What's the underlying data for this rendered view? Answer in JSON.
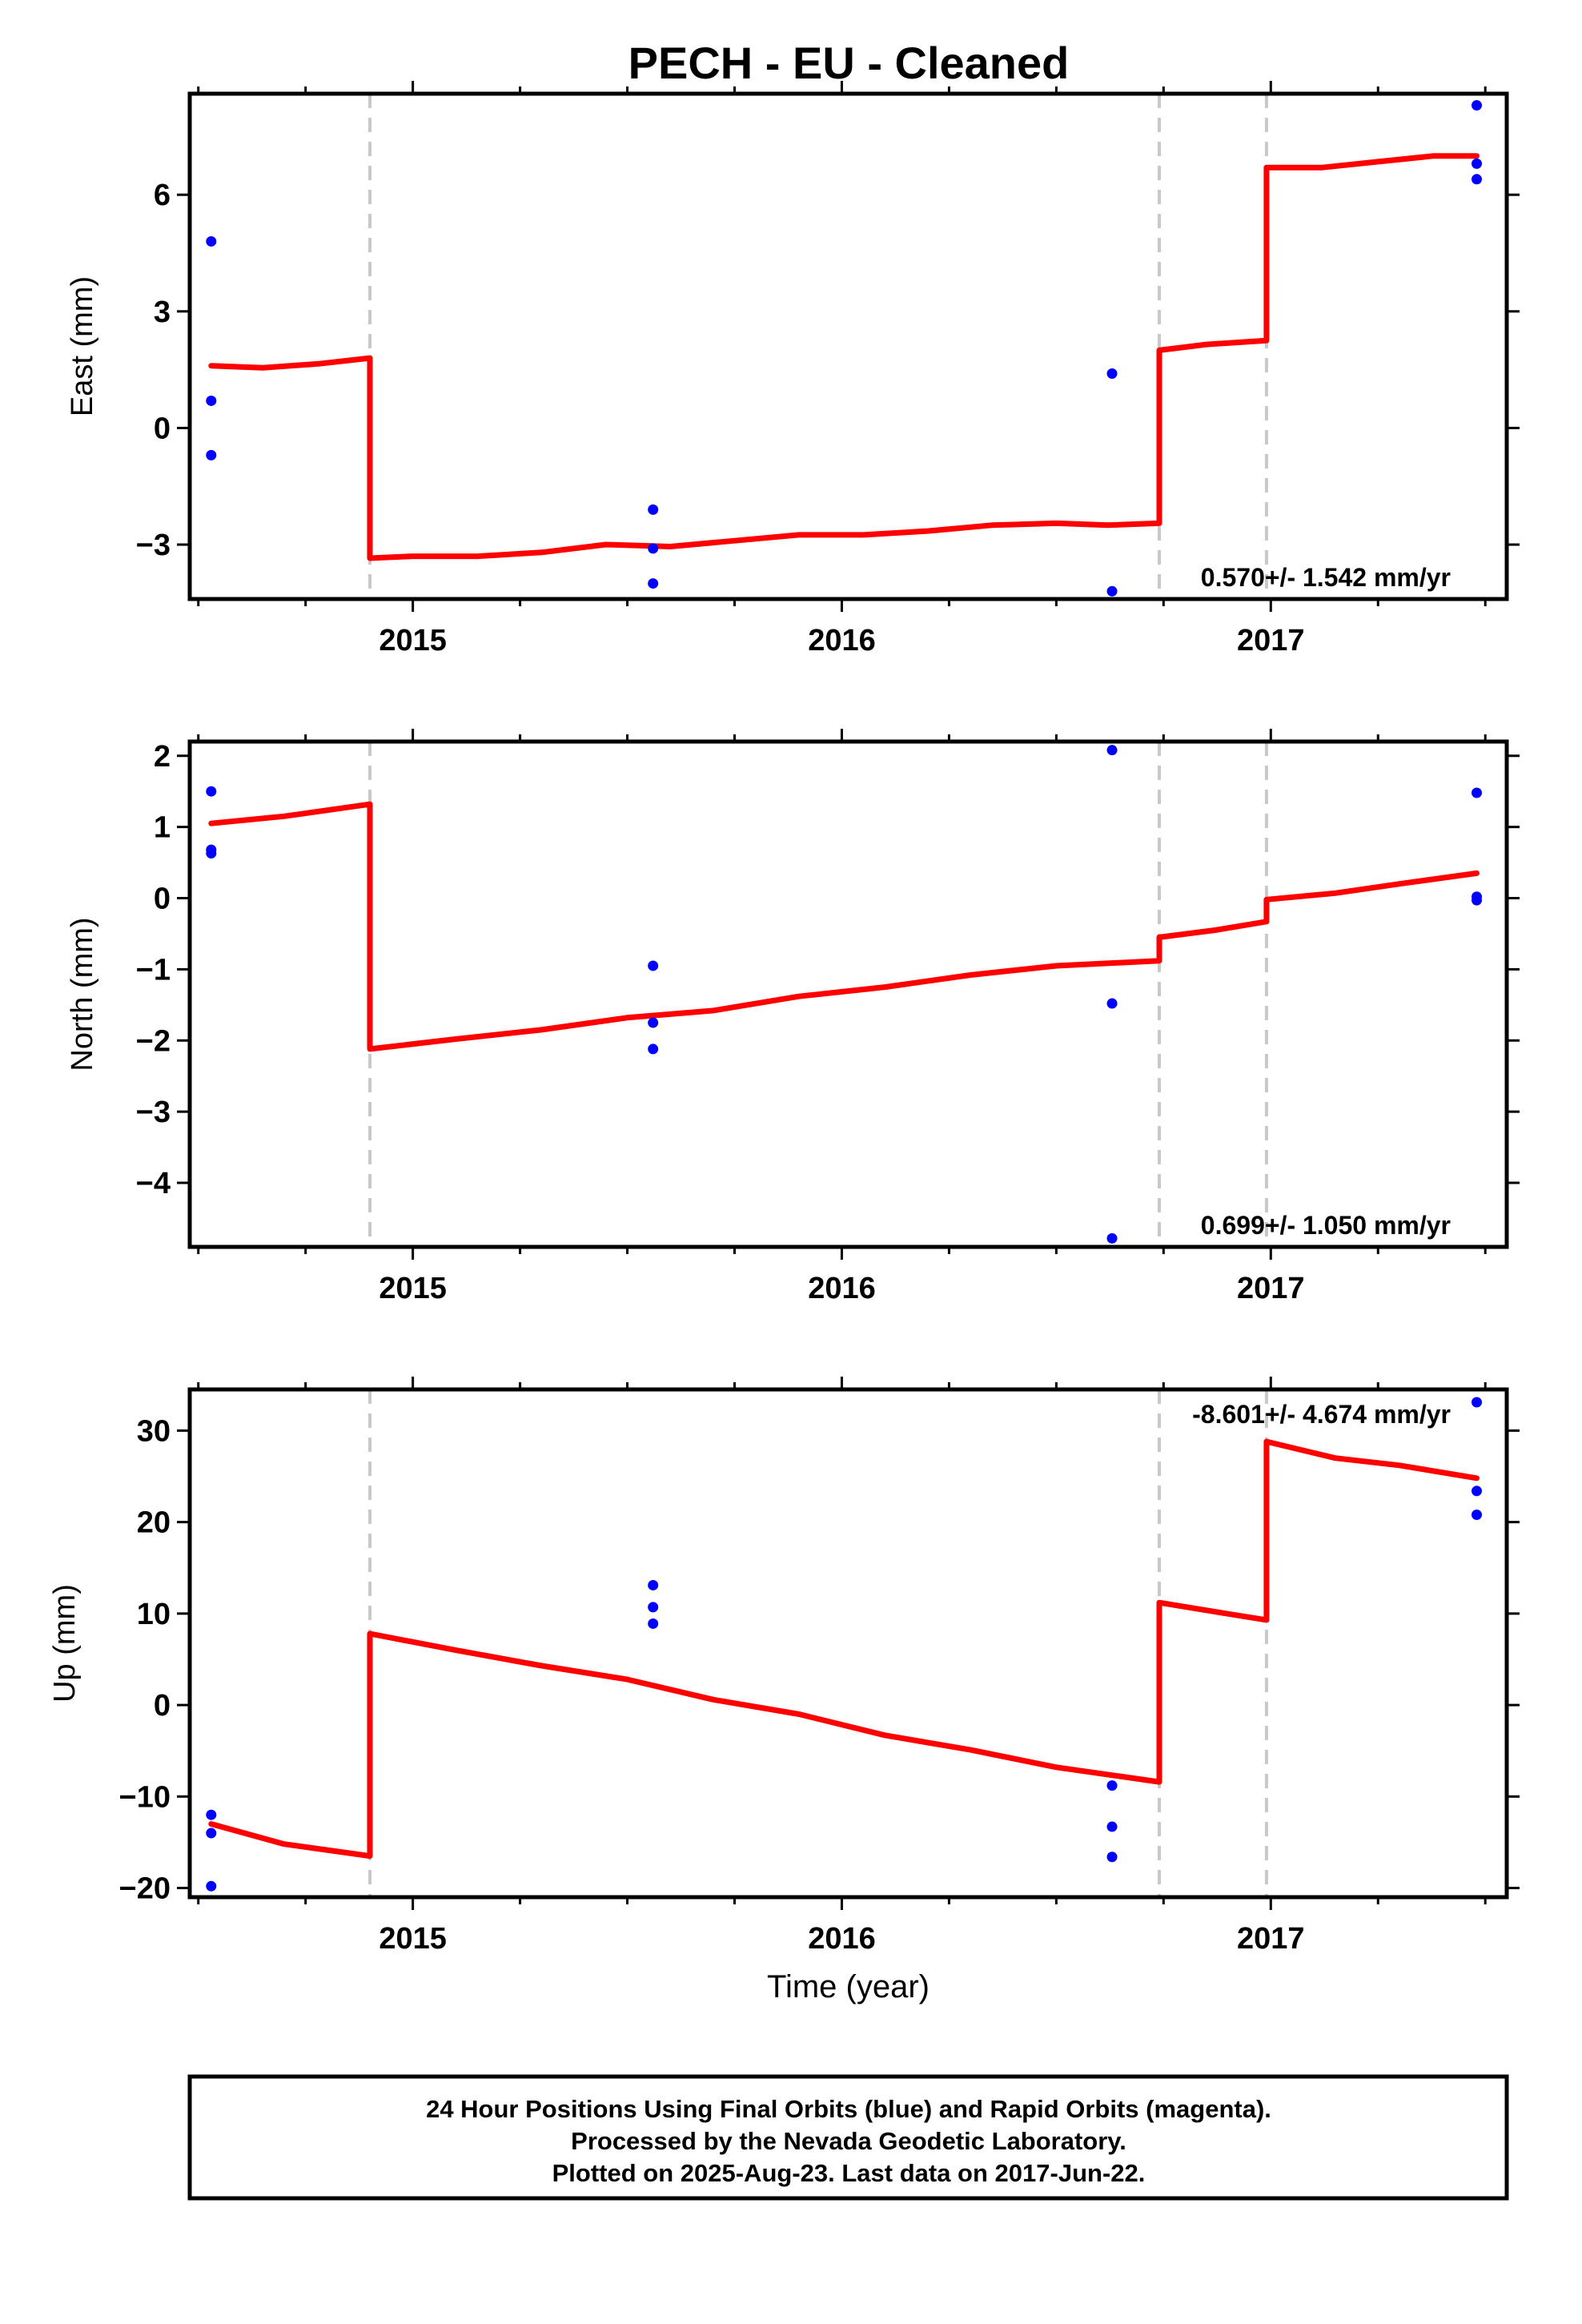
{
  "chart_data": [
    {
      "type": "line",
      "panel": "east",
      "title": "PECH  - EU - Cleaned",
      "ylabel": "East (mm)",
      "xlabel": "",
      "xlim": [
        2014.48,
        2017.55
      ],
      "ylim": [
        -4.4,
        8.6
      ],
      "x_ticks": [
        2015,
        2016,
        2017
      ],
      "y_ticks": [
        -3,
        0,
        3,
        6
      ],
      "y_tick_labels": [
        "−3",
        "0",
        "3",
        "6"
      ],
      "grid": false,
      "rate_label": "0.570+/- 1.542 mm/yr",
      "breaks": [
        2014.9,
        2016.74,
        2016.99
      ],
      "series": [
        {
          "role": "points",
          "x": [
            2014.53,
            2014.53,
            2014.53,
            2015.56,
            2015.56,
            2015.56,
            2016.63,
            2016.63,
            2017.48,
            2017.48,
            2017.48
          ],
          "y": [
            4.8,
            0.7,
            -0.7,
            -2.1,
            -3.1,
            -4.0,
            1.4,
            -4.2,
            8.3,
            6.8,
            6.4
          ]
        },
        {
          "role": "model",
          "segments": [
            {
              "x": [
                2014.53,
                2014.65,
                2014.78,
                2014.9
              ],
              "y": [
                1.6,
                1.55,
                1.65,
                1.8
              ]
            },
            {
              "x": [
                2014.9,
                2015.0,
                2015.15,
                2015.3,
                2015.45,
                2015.6,
                2015.75,
                2015.9,
                2016.05,
                2016.2,
                2016.35,
                2016.5,
                2016.62,
                2016.74
              ],
              "y": [
                -3.35,
                -3.3,
                -3.3,
                -3.2,
                -3.0,
                -3.05,
                -2.9,
                -2.75,
                -2.75,
                -2.65,
                -2.5,
                -2.45,
                -2.5,
                -2.45
              ]
            },
            {
              "x": [
                2016.74,
                2016.85,
                2016.99
              ],
              "y": [
                2.0,
                2.15,
                2.25
              ]
            },
            {
              "x": [
                2016.99,
                2017.12,
                2017.25,
                2017.38,
                2017.48
              ],
              "y": [
                6.7,
                6.7,
                6.85,
                7.0,
                7.0
              ]
            }
          ]
        }
      ]
    },
    {
      "type": "line",
      "panel": "north",
      "title": "",
      "ylabel": "North (mm)",
      "xlabel": "",
      "xlim": [
        2014.48,
        2017.55
      ],
      "ylim": [
        -4.9,
        2.2
      ],
      "x_ticks": [
        2015,
        2016,
        2017
      ],
      "y_ticks": [
        -4,
        -3,
        -2,
        -1,
        0,
        1,
        2
      ],
      "y_tick_labels": [
        "−4",
        "−3",
        "−2",
        "−1",
        "0",
        "1",
        "2"
      ],
      "grid": false,
      "rate_label": "0.699+/- 1.050 mm/yr",
      "breaks": [
        2014.9,
        2016.74,
        2016.99
      ],
      "series": [
        {
          "role": "points",
          "x": [
            2014.53,
            2014.53,
            2014.53,
            2015.56,
            2015.56,
            2015.56,
            2016.63,
            2016.63,
            2016.63,
            2017.48,
            2017.48,
            2017.48
          ],
          "y": [
            1.5,
            0.68,
            0.63,
            -0.95,
            -1.75,
            -2.12,
            2.08,
            -1.48,
            -4.78,
            1.48,
            0.02,
            -0.03
          ]
        },
        {
          "role": "model",
          "segments": [
            {
              "x": [
                2014.53,
                2014.7,
                2014.9
              ],
              "y": [
                1.05,
                1.15,
                1.32
              ]
            },
            {
              "x": [
                2014.9,
                2015.1,
                2015.3,
                2015.5,
                2015.7,
                2015.9,
                2016.1,
                2016.3,
                2016.5,
                2016.74
              ],
              "y": [
                -2.12,
                -1.98,
                -1.85,
                -1.68,
                -1.58,
                -1.38,
                -1.25,
                -1.08,
                -0.95,
                -0.88
              ]
            },
            {
              "x": [
                2016.74,
                2016.87,
                2016.99
              ],
              "y": [
                -0.55,
                -0.45,
                -0.33
              ]
            },
            {
              "x": [
                2016.99,
                2017.15,
                2017.3,
                2017.48
              ],
              "y": [
                -0.02,
                0.07,
                0.2,
                0.35
              ]
            }
          ]
        }
      ]
    },
    {
      "type": "line",
      "panel": "up",
      "title": "",
      "ylabel": "Up (mm)",
      "xlabel": "Time (year)",
      "xlim": [
        2014.48,
        2017.55
      ],
      "ylim": [
        -21,
        34.5
      ],
      "x_ticks": [
        2015,
        2016,
        2017
      ],
      "y_ticks": [
        -20,
        -10,
        0,
        10,
        20,
        30
      ],
      "y_tick_labels": [
        "−20",
        "−10",
        "0",
        "10",
        "20",
        "30"
      ],
      "grid": false,
      "rate_label": "-8.601+/- 4.674 mm/yr",
      "breaks": [
        2014.9,
        2016.74,
        2016.99
      ],
      "series": [
        {
          "role": "points",
          "x": [
            2014.53,
            2014.53,
            2014.53,
            2015.56,
            2015.56,
            2015.56,
            2016.63,
            2016.63,
            2016.63,
            2017.48,
            2017.48,
            2017.48
          ],
          "y": [
            -12.0,
            -14.0,
            -19.8,
            13.1,
            10.7,
            8.9,
            -8.8,
            -13.3,
            -16.6,
            33.1,
            23.4,
            20.8
          ]
        },
        {
          "role": "model",
          "segments": [
            {
              "x": [
                2014.53,
                2014.7,
                2014.9
              ],
              "y": [
                -13.0,
                -15.2,
                -16.5
              ]
            },
            {
              "x": [
                2014.9,
                2015.1,
                2015.3,
                2015.5,
                2015.7,
                2015.9,
                2016.1,
                2016.3,
                2016.5,
                2016.74
              ],
              "y": [
                7.8,
                6.0,
                4.3,
                2.8,
                0.6,
                -1.0,
                -3.3,
                -4.9,
                -6.8,
                -8.4
              ]
            },
            {
              "x": [
                2016.74,
                2016.87,
                2016.99
              ],
              "y": [
                11.2,
                10.2,
                9.3
              ]
            },
            {
              "x": [
                2016.99,
                2017.15,
                2017.3,
                2017.48
              ],
              "y": [
                28.8,
                27.0,
                26.2,
                24.8
              ]
            }
          ]
        }
      ]
    }
  ],
  "footer": {
    "line1": "24 Hour Positions Using Final Orbits (blue) and Rapid Orbits (magenta).",
    "line2": "Processed by the Nevada Geodetic Laboratory.",
    "line3": "Plotted on 2025-Aug-23. Last data on 2017-Jun-22."
  },
  "colors": {
    "points": "#0000ff",
    "model": "#ff0000",
    "breaks": "#c8c8c8",
    "frame": "#000000"
  }
}
